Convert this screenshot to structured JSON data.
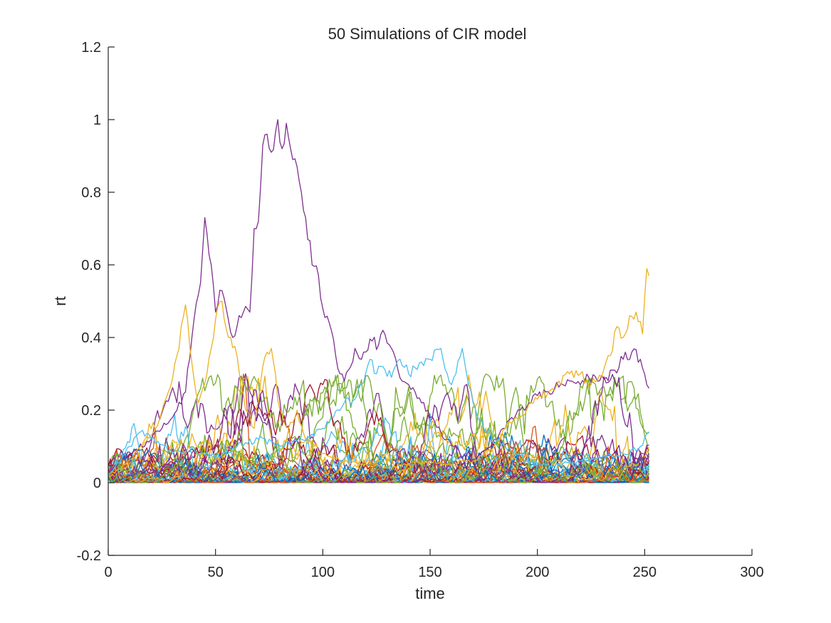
{
  "chart_data": {
    "type": "line",
    "title": "50 Simulations of CIR model",
    "xlabel": "time",
    "ylabel": "rt",
    "xlim": [
      0,
      300
    ],
    "ylim": [
      -0.2,
      1.2
    ],
    "xticks": [
      0,
      50,
      100,
      150,
      200,
      250,
      300
    ],
    "yticks": [
      -0.2,
      0,
      0.2,
      0.4,
      0.6,
      0.8,
      1,
      1.2
    ],
    "xtick_labels": [
      "0",
      "50",
      "100",
      "150",
      "200",
      "250",
      "300"
    ],
    "ytick_labels": [
      "-0.2",
      "0",
      "0.2",
      "0.4",
      "0.6",
      "0.8",
      "1",
      "1.2"
    ],
    "grid": false,
    "legend": "none",
    "n_series": 50,
    "colors": [
      "#0072BD",
      "#D95319",
      "#EDB120",
      "#7E2F8E",
      "#77AC30",
      "#4DBEEE",
      "#A2142F"
    ],
    "highlight_series": [
      {
        "key": "purple-peak",
        "color": "#7E2F8E",
        "points": [
          [
            0,
            0.03
          ],
          [
            10,
            0.08
          ],
          [
            20,
            0.12
          ],
          [
            30,
            0.18
          ],
          [
            36,
            0.25
          ],
          [
            40,
            0.45
          ],
          [
            43,
            0.55
          ],
          [
            45,
            0.73
          ],
          [
            48,
            0.6
          ],
          [
            50,
            0.47
          ],
          [
            52,
            0.53
          ],
          [
            55,
            0.48
          ],
          [
            58,
            0.4
          ],
          [
            60,
            0.43
          ],
          [
            63,
            0.47
          ],
          [
            66,
            0.47
          ],
          [
            68,
            0.7
          ],
          [
            70,
            0.72
          ],
          [
            72,
            0.93
          ],
          [
            74,
            0.96
          ],
          [
            76,
            0.91
          ],
          [
            79,
            1.0
          ],
          [
            81,
            0.92
          ],
          [
            83,
            0.99
          ],
          [
            86,
            0.89
          ],
          [
            88,
            0.87
          ],
          [
            90,
            0.8
          ],
          [
            92,
            0.73
          ],
          [
            95,
            0.6
          ],
          [
            98,
            0.57
          ],
          [
            100,
            0.48
          ],
          [
            103,
            0.44
          ],
          [
            106,
            0.35
          ],
          [
            108,
            0.3
          ],
          [
            110,
            0.28
          ],
          [
            113,
            0.32
          ],
          [
            115,
            0.37
          ],
          [
            118,
            0.34
          ],
          [
            120,
            0.36
          ],
          [
            123,
            0.39
          ],
          [
            126,
            0.38
          ],
          [
            128,
            0.42
          ],
          [
            131,
            0.38
          ],
          [
            134,
            0.34
          ],
          [
            137,
            0.28
          ],
          [
            140,
            0.27
          ],
          [
            143,
            0.25
          ],
          [
            146,
            0.22
          ],
          [
            149,
            0.2
          ],
          [
            152,
            0.17
          ],
          [
            155,
            0.14
          ],
          [
            158,
            0.12
          ],
          [
            161,
            0.1
          ],
          [
            164,
            0.08
          ],
          [
            168,
            0.06
          ],
          [
            172,
            0.07
          ],
          [
            176,
            0.09
          ],
          [
            180,
            0.12
          ],
          [
            184,
            0.15
          ],
          [
            188,
            0.18
          ],
          [
            192,
            0.2
          ],
          [
            196,
            0.22
          ],
          [
            200,
            0.24
          ],
          [
            204,
            0.25
          ],
          [
            208,
            0.26
          ],
          [
            212,
            0.27
          ],
          [
            216,
            0.28
          ],
          [
            220,
            0.27
          ],
          [
            224,
            0.29
          ],
          [
            228,
            0.28
          ],
          [
            232,
            0.29
          ],
          [
            236,
            0.31
          ],
          [
            240,
            0.34
          ],
          [
            244,
            0.36
          ],
          [
            248,
            0.34
          ],
          [
            252,
            0.26
          ]
        ]
      },
      {
        "key": "orange-end",
        "color": "#EDB120",
        "points": [
          [
            0,
            0.02
          ],
          [
            8,
            0.05
          ],
          [
            15,
            0.1
          ],
          [
            22,
            0.15
          ],
          [
            28,
            0.25
          ],
          [
            32,
            0.35
          ],
          [
            36,
            0.49
          ],
          [
            39,
            0.33
          ],
          [
            42,
            0.22
          ],
          [
            46,
            0.3
          ],
          [
            50,
            0.45
          ],
          [
            53,
            0.5
          ],
          [
            56,
            0.4
          ],
          [
            60,
            0.35
          ],
          [
            64,
            0.2
          ],
          [
            68,
            0.15
          ],
          [
            72,
            0.32
          ],
          [
            76,
            0.37
          ],
          [
            80,
            0.2
          ],
          [
            84,
            0.15
          ],
          [
            88,
            0.2
          ],
          [
            92,
            0.12
          ],
          [
            96,
            0.1
          ],
          [
            100,
            0.08
          ],
          [
            110,
            0.06
          ],
          [
            120,
            0.05
          ],
          [
            130,
            0.04
          ],
          [
            140,
            0.05
          ],
          [
            150,
            0.06
          ],
          [
            160,
            0.05
          ],
          [
            170,
            0.06
          ],
          [
            180,
            0.1
          ],
          [
            185,
            0.15
          ],
          [
            190,
            0.18
          ],
          [
            195,
            0.2
          ],
          [
            200,
            0.23
          ],
          [
            205,
            0.25
          ],
          [
            210,
            0.28
          ],
          [
            215,
            0.3
          ],
          [
            220,
            0.3
          ],
          [
            225,
            0.27
          ],
          [
            230,
            0.29
          ],
          [
            234,
            0.35
          ],
          [
            237,
            0.43
          ],
          [
            240,
            0.4
          ],
          [
            243,
            0.46
          ],
          [
            246,
            0.47
          ],
          [
            249,
            0.41
          ],
          [
            251,
            0.59
          ],
          [
            252,
            0.57
          ]
        ]
      },
      {
        "key": "cyan-mid",
        "color": "#4DBEEE",
        "points": [
          [
            0,
            0.02
          ],
          [
            10,
            0.1
          ],
          [
            15,
            0.14
          ],
          [
            20,
            0.12
          ],
          [
            30,
            0.08
          ],
          [
            40,
            0.09
          ],
          [
            50,
            0.07
          ],
          [
            60,
            0.1
          ],
          [
            70,
            0.12
          ],
          [
            80,
            0.1
          ],
          [
            90,
            0.12
          ],
          [
            100,
            0.15
          ],
          [
            105,
            0.18
          ],
          [
            110,
            0.22
          ],
          [
            115,
            0.23
          ],
          [
            118,
            0.27
          ],
          [
            122,
            0.34
          ],
          [
            125,
            0.3
          ],
          [
            128,
            0.32
          ],
          [
            132,
            0.29
          ],
          [
            136,
            0.34
          ],
          [
            140,
            0.3
          ],
          [
            145,
            0.33
          ],
          [
            150,
            0.34
          ],
          [
            155,
            0.37
          ],
          [
            158,
            0.3
          ],
          [
            160,
            0.27
          ],
          [
            162,
            0.3
          ],
          [
            165,
            0.37
          ],
          [
            167,
            0.3
          ],
          [
            170,
            0.22
          ],
          [
            175,
            0.15
          ],
          [
            180,
            0.12
          ],
          [
            185,
            0.1
          ],
          [
            190,
            0.08
          ],
          [
            195,
            0.06
          ],
          [
            200,
            0.05
          ],
          [
            210,
            0.05
          ],
          [
            220,
            0.06
          ],
          [
            230,
            0.07
          ],
          [
            240,
            0.08
          ],
          [
            248,
            0.1
          ],
          [
            252,
            0.14
          ]
        ]
      }
    ]
  }
}
